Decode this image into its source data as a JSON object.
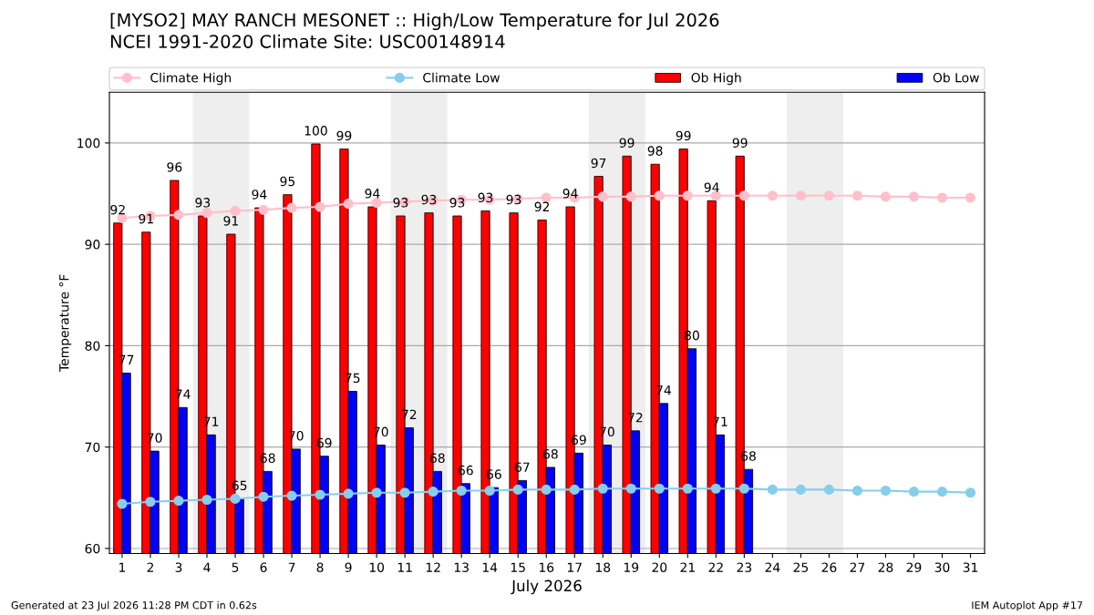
{
  "chart_data": {
    "type": "bar",
    "title": "[MYSO2] MAY RANCH MESONET :: High/Low Temperature for Jul 2026",
    "subtitle": "NCEI 1991-2020 Climate Site: USC00148914",
    "xlabel": "July 2026",
    "ylabel": "Temperature °F",
    "x": [
      1,
      2,
      3,
      4,
      5,
      6,
      7,
      8,
      9,
      10,
      11,
      12,
      13,
      14,
      15,
      16,
      17,
      18,
      19,
      20,
      21,
      22,
      23,
      24,
      25,
      26,
      27,
      28,
      29,
      30,
      31
    ],
    "series": [
      {
        "name": "Climate High",
        "type": "line",
        "marker": "circle",
        "color": "#ffc0cb",
        "values": [
          92.6,
          92.8,
          92.9,
          93.1,
          93.3,
          93.4,
          93.6,
          93.7,
          94.0,
          94.1,
          94.2,
          94.3,
          94.4,
          94.4,
          94.5,
          94.6,
          94.6,
          94.7,
          94.7,
          94.8,
          94.8,
          94.8,
          94.8,
          94.8,
          94.8,
          94.8,
          94.8,
          94.7,
          94.7,
          94.6,
          94.6
        ]
      },
      {
        "name": "Climate Low",
        "type": "line",
        "marker": "circle",
        "color": "#87ceeb",
        "values": [
          64.4,
          64.6,
          64.7,
          64.8,
          64.9,
          65.1,
          65.2,
          65.3,
          65.4,
          65.5,
          65.5,
          65.6,
          65.7,
          65.7,
          65.8,
          65.8,
          65.8,
          65.9,
          65.9,
          65.9,
          65.9,
          65.9,
          65.9,
          65.8,
          65.8,
          65.8,
          65.7,
          65.7,
          65.6,
          65.6,
          65.5
        ]
      },
      {
        "name": "Ob High",
        "color": "#ff0000",
        "values": [
          92.1,
          91.2,
          96.3,
          92.8,
          91.0,
          93.6,
          94.9,
          99.9,
          99.4,
          93.7,
          92.8,
          93.1,
          92.8,
          93.3,
          93.1,
          92.4,
          93.7,
          96.7,
          98.7,
          97.9,
          99.4,
          94.3,
          98.7,
          null,
          null,
          null,
          null,
          null,
          null,
          null,
          null
        ],
        "value_labels": [
          "92",
          "91",
          "96",
          "93",
          "91",
          "94",
          "95",
          "100",
          "99",
          "94",
          "93",
          "93",
          "93",
          "93",
          "93",
          "92",
          "94",
          "97",
          "99",
          "98",
          "99",
          "94",
          "99",
          null,
          null,
          null,
          null,
          null,
          null,
          null,
          null
        ]
      },
      {
        "name": "Ob Low",
        "color": "#0000ff",
        "values": [
          77.3,
          69.6,
          73.9,
          71.2,
          64.9,
          67.6,
          69.8,
          69.1,
          75.5,
          70.2,
          71.9,
          67.6,
          66.4,
          66.0,
          66.7,
          68.0,
          69.4,
          70.2,
          71.6,
          74.3,
          79.7,
          71.2,
          67.8,
          null,
          null,
          null,
          null,
          null,
          null,
          null,
          null
        ],
        "value_labels": [
          "77",
          "70",
          "74",
          "71",
          "65",
          "68",
          "70",
          "69",
          "75",
          "70",
          "72",
          "68",
          "66",
          "66",
          "67",
          "68",
          "69",
          "70",
          "72",
          "74",
          "80",
          "71",
          "68",
          null,
          null,
          null,
          null,
          null,
          null,
          null,
          null
        ]
      }
    ],
    "bands": [
      {
        "axis": "x",
        "from": 3.5,
        "to": 5.5,
        "color": "#eeeeee"
      },
      {
        "axis": "x",
        "from": 10.5,
        "to": 12.5,
        "color": "#eeeeee"
      },
      {
        "axis": "x",
        "from": 17.5,
        "to": 19.5,
        "color": "#eeeeee"
      },
      {
        "axis": "x",
        "from": 24.5,
        "to": 26.5,
        "color": "#eeeeee"
      }
    ],
    "xlim": [
      0.55,
      31.5
    ],
    "xticks": [
      1,
      2,
      3,
      4,
      5,
      6,
      7,
      8,
      9,
      10,
      11,
      12,
      13,
      14,
      15,
      16,
      17,
      18,
      19,
      20,
      21,
      22,
      23,
      24,
      25,
      26,
      27,
      28,
      29,
      30,
      31
    ],
    "ylim": [
      59.5,
      105
    ],
    "yticks": [
      60,
      70,
      80,
      90,
      100
    ],
    "grid": "y",
    "legend": "top",
    "annotations": [
      "Generated at 23 Jul 2026 11:28 PM CDT in 0.62s",
      "IEM Autoplot App #17"
    ]
  }
}
